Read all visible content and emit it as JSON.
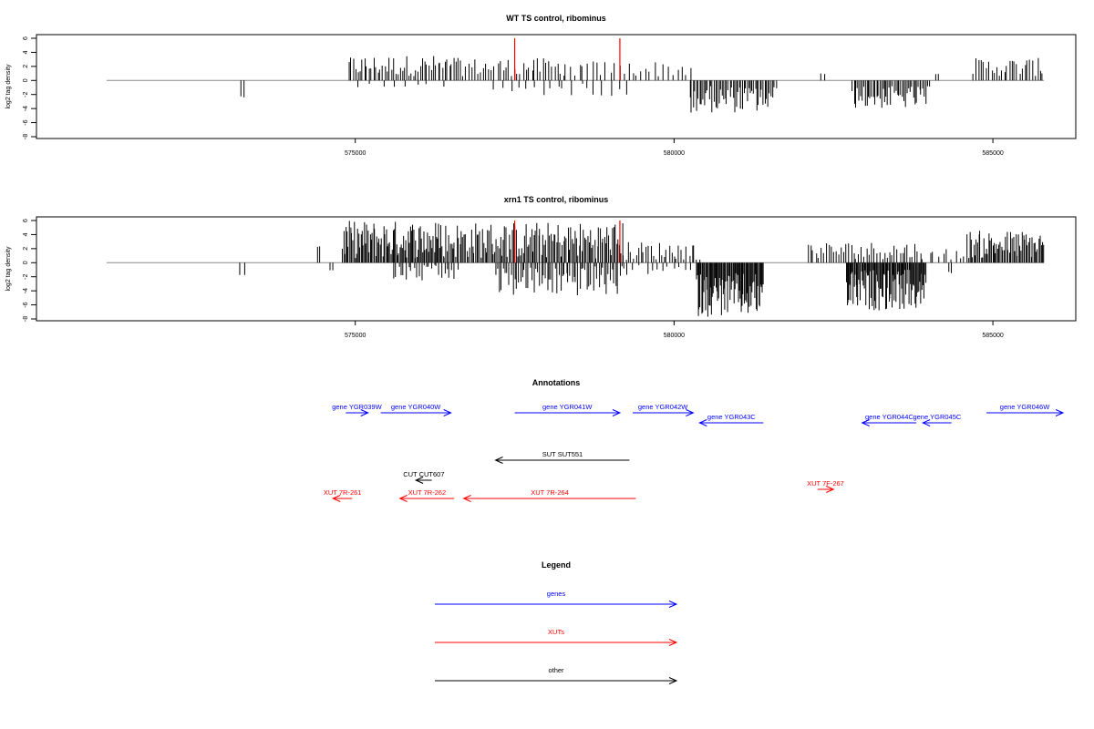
{
  "chart_data": [
    {
      "type": "bar",
      "title": "WT TS control, ribominus",
      "ylabel": "log2 tag density",
      "xlabel": "",
      "xlim": [
        570000,
        586300
      ],
      "ylim": [
        -8,
        6
      ],
      "yticks": [
        -8,
        -6,
        -4,
        -2,
        0,
        2,
        4,
        6
      ],
      "xticks": [
        575000,
        580000,
        585000
      ],
      "baseline": [
        571100,
        585800
      ],
      "highlights": [
        {
          "x": 577500,
          "y": 6
        },
        {
          "x": 579150,
          "y": 6
        }
      ],
      "highlight_color": "#ff0000",
      "bar_color": "#000000",
      "regions": [
        {
          "from": 573200,
          "to": 573250,
          "sign": -1,
          "step": 50,
          "amp": [
            2.2,
            2.4
          ]
        },
        {
          "from": 574900,
          "to": 576600,
          "sign": 1,
          "step": 35,
          "amp": [
            0.6,
            3.6
          ]
        },
        {
          "from": 575100,
          "to": 576500,
          "sign": -1,
          "step": 180,
          "amp": [
            0.3,
            1.0
          ]
        },
        {
          "from": 576600,
          "to": 578300,
          "sign": 1,
          "step": 45,
          "amp": [
            0.6,
            3.2
          ]
        },
        {
          "from": 577200,
          "to": 579300,
          "sign": -1,
          "step": 120,
          "amp": [
            0.4,
            2.2
          ]
        },
        {
          "from": 578300,
          "to": 580300,
          "sign": 1,
          "step": 70,
          "amp": [
            0.5,
            2.8
          ]
        },
        {
          "from": 580250,
          "to": 581600,
          "sign": -1,
          "step": 25,
          "amp": [
            0.8,
            4.6
          ]
        },
        {
          "from": 582300,
          "to": 582350,
          "sign": 1,
          "step": 50,
          "amp": [
            0.9,
            1.0
          ]
        },
        {
          "from": 582800,
          "to": 584000,
          "sign": -1,
          "step": 25,
          "amp": [
            0.8,
            4.0
          ]
        },
        {
          "from": 584100,
          "to": 584150,
          "sign": 1,
          "step": 50,
          "amp": [
            0.9,
            1.0
          ]
        },
        {
          "from": 584700,
          "to": 585800,
          "sign": 1,
          "step": 40,
          "amp": [
            0.6,
            3.2
          ]
        }
      ]
    },
    {
      "type": "bar",
      "title": "xrn1 TS control, ribominus",
      "ylabel": "log2 tag density",
      "xlabel": "",
      "xlim": [
        570000,
        586300
      ],
      "ylim": [
        -8,
        6
      ],
      "yticks": [
        -8,
        -6,
        -4,
        -2,
        0,
        2,
        4,
        6
      ],
      "xticks": [
        575000,
        580000,
        585000
      ],
      "baseline": [
        571100,
        585800
      ],
      "highlights": [
        {
          "x": 577500,
          "y": 6
        },
        {
          "x": 579150,
          "y": 6
        }
      ],
      "highlight_color": "#ff0000",
      "bar_color": "#000000",
      "regions": [
        {
          "from": 573200,
          "to": 573250,
          "sign": -1,
          "step": 50,
          "amp": [
            1.6,
            2.0
          ]
        },
        {
          "from": 574400,
          "to": 574450,
          "sign": 1,
          "step": 50,
          "amp": [
            2.2,
            2.4
          ]
        },
        {
          "from": 574600,
          "to": 574650,
          "sign": -1,
          "step": 50,
          "amp": [
            1.0,
            1.2
          ]
        },
        {
          "from": 574800,
          "to": 576400,
          "sign": 1,
          "step": 18,
          "amp": [
            0.6,
            6.0
          ]
        },
        {
          "from": 575600,
          "to": 576600,
          "sign": -1,
          "step": 40,
          "amp": [
            0.3,
            2.8
          ]
        },
        {
          "from": 576400,
          "to": 579200,
          "sign": 1,
          "step": 22,
          "amp": [
            0.6,
            5.8
          ]
        },
        {
          "from": 577200,
          "to": 579200,
          "sign": -1,
          "step": 30,
          "amp": [
            0.5,
            4.8
          ]
        },
        {
          "from": 579200,
          "to": 580400,
          "sign": 1,
          "step": 40,
          "amp": [
            0.4,
            3.0
          ]
        },
        {
          "from": 579200,
          "to": 580300,
          "sign": -1,
          "step": 90,
          "amp": [
            0.3,
            1.8
          ]
        },
        {
          "from": 580350,
          "to": 581400,
          "sign": -1,
          "step": 14,
          "amp": [
            1.5,
            7.7
          ]
        },
        {
          "from": 582100,
          "to": 583900,
          "sign": 1,
          "step": 40,
          "amp": [
            0.5,
            3.0
          ]
        },
        {
          "from": 582700,
          "to": 583950,
          "sign": -1,
          "step": 14,
          "amp": [
            1.0,
            6.8
          ]
        },
        {
          "from": 584000,
          "to": 584600,
          "sign": 1,
          "step": 70,
          "amp": [
            0.4,
            2.0
          ]
        },
        {
          "from": 584300,
          "to": 584350,
          "sign": -1,
          "step": 50,
          "amp": [
            1.3,
            1.5
          ]
        },
        {
          "from": 584600,
          "to": 585800,
          "sign": 1,
          "step": 20,
          "amp": [
            0.6,
            4.6
          ]
        }
      ]
    },
    {
      "type": "annotation-track",
      "title": "Annotations",
      "xlim": [
        570000,
        586300
      ],
      "features": [
        {
          "label": "gene YGR039W",
          "category": "genes",
          "start": 574850,
          "end": 575200,
          "strand": "+",
          "row": 0
        },
        {
          "label": "gene YGR040W",
          "category": "genes",
          "start": 575400,
          "end": 576500,
          "strand": "+",
          "row": 0
        },
        {
          "label": "gene YGR041W",
          "category": "genes",
          "start": 577500,
          "end": 579150,
          "strand": "+",
          "row": 0
        },
        {
          "label": "gene YGR042W",
          "category": "genes",
          "start": 579350,
          "end": 580300,
          "strand": "+",
          "row": 0
        },
        {
          "label": "gene YGR043C",
          "category": "genes",
          "start": 580400,
          "end": 581400,
          "strand": "-",
          "row": 1
        },
        {
          "label": "gene YGR044C",
          "category": "genes",
          "start": 582950,
          "end": 583800,
          "strand": "-",
          "row": 1
        },
        {
          "label": "gene YGR045C",
          "category": "genes",
          "start": 583900,
          "end": 584350,
          "strand": "-",
          "row": 1
        },
        {
          "label": "gene YGR046W",
          "category": "genes",
          "start": 584900,
          "end": 586100,
          "strand": "+",
          "row": 0
        },
        {
          "label": "SUT SUT551",
          "category": "other",
          "start": 577200,
          "end": 579300,
          "strand": "-",
          "row": 2
        },
        {
          "label": "CUT CUT607",
          "category": "other",
          "start": 575950,
          "end": 576200,
          "strand": "-",
          "row": 3
        },
        {
          "label": "XUT 7R-261",
          "category": "XUTs",
          "start": 574650,
          "end": 574950,
          "strand": "-",
          "row": 4
        },
        {
          "label": "XUT 7R-262",
          "category": "XUTs",
          "start": 575700,
          "end": 576550,
          "strand": "-",
          "row": 4
        },
        {
          "label": "XUT 7R-264",
          "category": "XUTs",
          "start": 576700,
          "end": 579400,
          "strand": "-",
          "row": 4
        },
        {
          "label": "XUT 7F-267",
          "category": "XUTs",
          "start": 582250,
          "end": 582500,
          "strand": "+",
          "row": 5
        }
      ]
    },
    {
      "type": "legend",
      "title": "Legend",
      "entries": [
        {
          "label": "genes",
          "color": "#0000ff"
        },
        {
          "label": "XUTs",
          "color": "#ff0000"
        },
        {
          "label": "other",
          "color": "#000000"
        }
      ]
    }
  ]
}
